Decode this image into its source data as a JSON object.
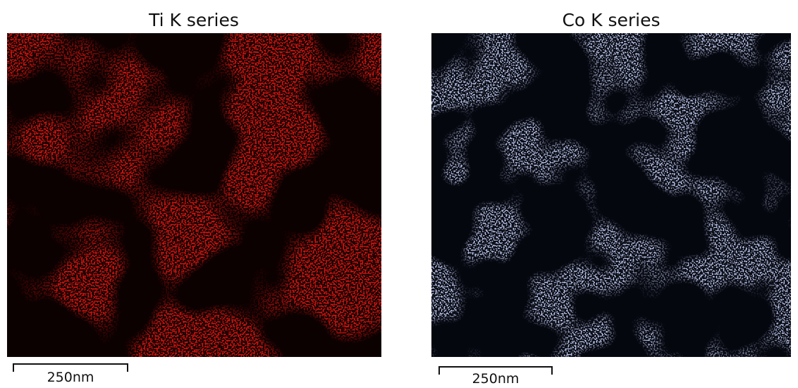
{
  "panels": [
    {
      "title": "Ti K series",
      "scale_bar": "250nm"
    },
    {
      "title": "Co K series",
      "scale_bar": "250nm"
    }
  ]
}
